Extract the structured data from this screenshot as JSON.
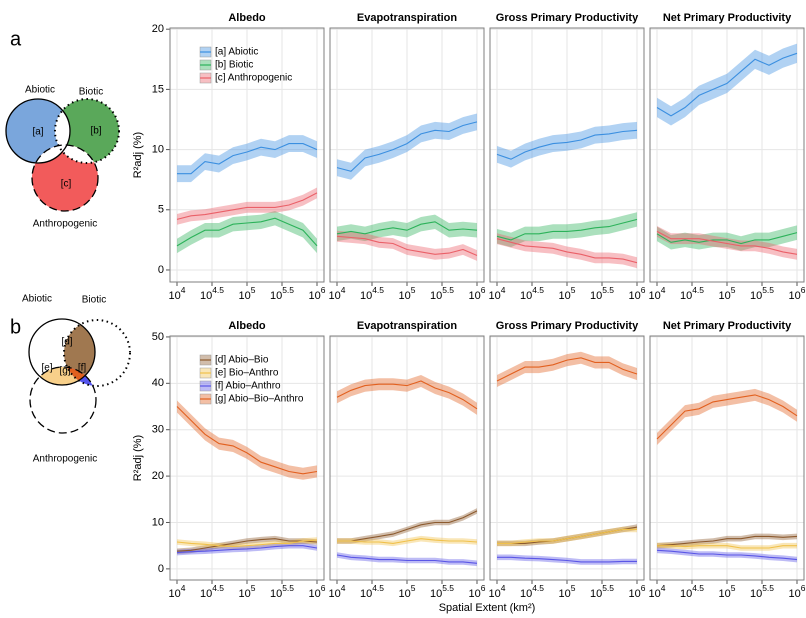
{
  "panel_labels": [
    "a",
    "b"
  ],
  "venn": [
    {
      "sets": [
        "Abiotic",
        "Biotic",
        "Anthropogenic"
      ],
      "regions": [
        "[a]",
        "[b]",
        "[c]"
      ]
    },
    {
      "sets": [
        "Abiotic",
        "Biotic",
        "Anthropogenic"
      ],
      "regions": [
        "[d]",
        "[e]",
        "[f]",
        "[g]"
      ]
    }
  ],
  "chart_data": [
    {
      "type": "line",
      "title": "Albedo",
      "xscale": "log",
      "grid": true,
      "legend": "upper left",
      "ylabel": "R²adj (%)",
      "x": [
        10000,
        15849,
        25119,
        39811,
        63096,
        100000,
        158489,
        251189,
        398107,
        630957,
        1000000
      ],
      "xlim": [
        7943,
        1258925
      ],
      "xticks": [
        {
          "value": 10000,
          "label": "10^4"
        },
        {
          "value": 31623,
          "label": "10^4.5"
        },
        {
          "value": 100000,
          "label": "10^5"
        },
        {
          "value": 316228,
          "label": "10^5.5"
        },
        {
          "value": 1000000,
          "label": "10^6"
        }
      ],
      "ylim": [
        -1,
        20.1
      ],
      "yticks": [
        0,
        5,
        10,
        15,
        20
      ],
      "series": [
        {
          "name": "[a] Abiotic",
          "color": "#3b8fe0",
          "error": 0.7,
          "values": [
            8,
            8,
            9,
            8.8,
            9.5,
            9.8,
            10.2,
            10,
            10.5,
            10.5,
            10
          ]
        },
        {
          "name": "[b] Biotic",
          "color": "#2cb25a",
          "error": 0.6,
          "values": [
            2,
            2.7,
            3.3,
            3.3,
            3.8,
            3.9,
            4,
            4.3,
            3.8,
            3.3,
            2
          ]
        },
        {
          "name": "[c] Anthropogenic",
          "color": "#ea6068",
          "error": 0.45,
          "values": [
            4.2,
            4.5,
            4.6,
            4.8,
            5,
            5.2,
            5.2,
            5.2,
            5.4,
            5.8,
            6.4
          ]
        }
      ]
    },
    {
      "type": "line",
      "title": "Evapotranspiration",
      "xscale": "log",
      "grid": true,
      "x": [
        10000,
        15849,
        25119,
        39811,
        63096,
        100000,
        158489,
        251189,
        398107,
        630957,
        1000000
      ],
      "xlim": [
        7943,
        1258925
      ],
      "xticks": [
        {
          "value": 10000,
          "label": "10^4"
        },
        {
          "value": 31623,
          "label": "10^4.5"
        },
        {
          "value": 100000,
          "label": "10^5"
        },
        {
          "value": 316228,
          "label": "10^5.5"
        },
        {
          "value": 1000000,
          "label": "10^6"
        }
      ],
      "ylim": [
        -1,
        20.1
      ],
      "yticks": [
        0,
        5,
        10,
        15,
        20
      ],
      "series": [
        {
          "color": "#3b8fe0",
          "error": 0.7,
          "values": [
            8.5,
            8.2,
            9.3,
            9.6,
            10,
            10.5,
            11.3,
            11.6,
            11.5,
            12,
            12.3
          ]
        },
        {
          "color": "#2cb25a",
          "error": 0.6,
          "values": [
            3,
            3.2,
            3,
            3.3,
            3.5,
            3.3,
            3.8,
            4,
            3.3,
            3.4,
            3.3
          ]
        },
        {
          "color": "#ea6068",
          "error": 0.45,
          "values": [
            2.8,
            2.7,
            2.6,
            2.3,
            2.2,
            1.7,
            1.5,
            1.3,
            1.4,
            1.7,
            1.2
          ]
        }
      ]
    },
    {
      "type": "line",
      "title": "Gross Primary Productivity",
      "xscale": "log",
      "grid": true,
      "x": [
        10000,
        15849,
        25119,
        39811,
        63096,
        100000,
        158489,
        251189,
        398107,
        630957,
        1000000
      ],
      "xlim": [
        7943,
        1258925
      ],
      "xticks": [
        {
          "value": 10000,
          "label": "10^4"
        },
        {
          "value": 31623,
          "label": "10^4.5"
        },
        {
          "value": 100000,
          "label": "10^5"
        },
        {
          "value": 316228,
          "label": "10^5.5"
        },
        {
          "value": 1000000,
          "label": "10^6"
        }
      ],
      "ylim": [
        -1,
        20.1
      ],
      "yticks": [
        0,
        5,
        10,
        15,
        20
      ],
      "series": [
        {
          "color": "#3b8fe0",
          "error": 0.7,
          "values": [
            9.6,
            9.2,
            9.8,
            10.2,
            10.5,
            10.6,
            10.8,
            11.2,
            11.3,
            11.5,
            11.6
          ]
        },
        {
          "color": "#2cb25a",
          "error": 0.6,
          "values": [
            2.8,
            2.5,
            3,
            3,
            3.2,
            3.2,
            3.3,
            3.5,
            3.6,
            3.9,
            4.2
          ]
        },
        {
          "color": "#ea6068",
          "error": 0.45,
          "values": [
            2.6,
            2.3,
            2,
            1.9,
            1.8,
            1.5,
            1.3,
            1,
            1,
            0.9,
            0.6
          ]
        }
      ]
    },
    {
      "type": "line",
      "title": "Net Primary Productivity",
      "xscale": "log",
      "grid": true,
      "x": [
        10000,
        15849,
        25119,
        39811,
        63096,
        100000,
        158489,
        251189,
        398107,
        630957,
        1000000
      ],
      "xlim": [
        7943,
        1258925
      ],
      "xticks": [
        {
          "value": 10000,
          "label": "10^4"
        },
        {
          "value": 31623,
          "label": "10^4.5"
        },
        {
          "value": 100000,
          "label": "10^5"
        },
        {
          "value": 316228,
          "label": "10^5.5"
        },
        {
          "value": 1000000,
          "label": "10^6"
        }
      ],
      "ylim": [
        -1,
        20.1
      ],
      "yticks": [
        0,
        5,
        10,
        15,
        20
      ],
      "series": [
        {
          "color": "#3b8fe0",
          "error": 0.8,
          "values": [
            13.5,
            12.8,
            13.5,
            14.5,
            15,
            15.5,
            16.5,
            17.5,
            17,
            17.6,
            18
          ]
        },
        {
          "color": "#2cb25a",
          "error": 0.6,
          "values": [
            3,
            2.3,
            2.5,
            2.3,
            2.5,
            2.5,
            2.2,
            2.5,
            2.5,
            2.8,
            3.1
          ]
        },
        {
          "color": "#ea6068",
          "error": 0.45,
          "values": [
            3.2,
            2.6,
            2.6,
            2.6,
            2.4,
            2.2,
            2,
            2,
            1.8,
            1.5,
            1.3
          ]
        }
      ]
    },
    {
      "type": "line",
      "title": "Albedo",
      "xscale": "log",
      "grid": true,
      "legend": "upper left",
      "ylabel": "R²adj (%)",
      "xlabel": "Spatial Extent (km²)",
      "x": [
        10000,
        15849,
        25119,
        39811,
        63096,
        100000,
        158489,
        251189,
        398107,
        630957,
        1000000
      ],
      "xlim": [
        7943,
        1258925
      ],
      "xticks": [
        {
          "value": 10000,
          "label": "10^4"
        },
        {
          "value": 31623,
          "label": "10^4.5"
        },
        {
          "value": 100000,
          "label": "10^5"
        },
        {
          "value": 316228,
          "label": "10^5.5"
        },
        {
          "value": 1000000,
          "label": "10^6"
        }
      ],
      "ylim": [
        -2.4,
        50.2
      ],
      "yticks": [
        0,
        10,
        20,
        30,
        40,
        50
      ],
      "series": [
        {
          "name": "[d] Abio–Bio",
          "color": "#8c5a2e",
          "error": 0.6,
          "values": [
            3.8,
            4,
            4.5,
            5,
            5.5,
            6,
            6.3,
            6.5,
            6,
            6,
            5.8
          ]
        },
        {
          "name": "[e] Bio–Anthro",
          "color": "#f0c14b",
          "error": 0.6,
          "values": [
            5.8,
            5.5,
            5.3,
            5,
            4.8,
            5,
            5.2,
            5.5,
            5.5,
            6,
            6.2
          ]
        },
        {
          "name": "[f]  Abio–Anthro",
          "color": "#5a56e6",
          "error": 0.6,
          "values": [
            3.5,
            3.7,
            3.8,
            4,
            4.2,
            4.3,
            4.5,
            4.8,
            5,
            5,
            4.5
          ]
        },
        {
          "name": "[g] Abio–Bio–Anthro",
          "color": "#e2601f",
          "error": 1.3,
          "values": [
            35,
            32,
            29,
            27,
            26.5,
            25,
            23,
            22,
            21,
            20.5,
            21
          ]
        }
      ]
    },
    {
      "type": "line",
      "title": "Evapotranspiration",
      "xscale": "log",
      "grid": true,
      "x": [
        10000,
        15849,
        25119,
        39811,
        63096,
        100000,
        158489,
        251189,
        398107,
        630957,
        1000000
      ],
      "xlim": [
        7943,
        1258925
      ],
      "xticks": [
        {
          "value": 10000,
          "label": "10^4"
        },
        {
          "value": 31623,
          "label": "10^4.5"
        },
        {
          "value": 100000,
          "label": "10^5"
        },
        {
          "value": 316228,
          "label": "10^5.5"
        },
        {
          "value": 1000000,
          "label": "10^6"
        }
      ],
      "ylim": [
        -2.4,
        50.2
      ],
      "yticks": [
        0,
        10,
        20,
        30,
        40,
        50
      ],
      "series": [
        {
          "color": "#8c5a2e",
          "error": 0.6,
          "values": [
            6,
            6,
            6.5,
            7,
            7.5,
            8.5,
            9.5,
            10,
            10,
            11,
            12.5
          ]
        },
        {
          "color": "#f0c14b",
          "error": 0.6,
          "values": [
            6,
            6,
            5.8,
            5.8,
            5.5,
            6,
            6.5,
            6.2,
            6,
            6,
            5.8
          ]
        },
        {
          "color": "#5a56e6",
          "error": 0.6,
          "values": [
            3,
            2.5,
            2.3,
            2,
            2,
            1.8,
            1.8,
            1.8,
            1.5,
            1.5,
            1.2
          ]
        },
        {
          "color": "#e2601f",
          "error": 1.3,
          "values": [
            37,
            38.5,
            39.5,
            39.8,
            39.8,
            39.5,
            40.5,
            39,
            38,
            36.5,
            34.5
          ]
        }
      ]
    },
    {
      "type": "line",
      "title": "Gross Primary Productivity",
      "xscale": "log",
      "grid": true,
      "x": [
        10000,
        15849,
        25119,
        39811,
        63096,
        100000,
        158489,
        251189,
        398107,
        630957,
        1000000
      ],
      "xlim": [
        7943,
        1258925
      ],
      "xticks": [
        {
          "value": 10000,
          "label": "10^4"
        },
        {
          "value": 31623,
          "label": "10^4.5"
        },
        {
          "value": 100000,
          "label": "10^5"
        },
        {
          "value": 316228,
          "label": "10^5.5"
        },
        {
          "value": 1000000,
          "label": "10^6"
        }
      ],
      "ylim": [
        -2.4,
        50.2
      ],
      "yticks": [
        0,
        10,
        20,
        30,
        40,
        50
      ],
      "series": [
        {
          "color": "#8c5a2e",
          "error": 0.6,
          "values": [
            5.5,
            5.5,
            5.5,
            5.8,
            6,
            6.5,
            7,
            7.5,
            8,
            8.5,
            9
          ]
        },
        {
          "color": "#f0c14b",
          "error": 0.6,
          "values": [
            5.5,
            5.5,
            5.8,
            6,
            6,
            6.5,
            7,
            7.5,
            8,
            8.5,
            8.5
          ]
        },
        {
          "color": "#5a56e6",
          "error": 0.6,
          "values": [
            2.5,
            2.5,
            2.3,
            2.2,
            2,
            1.8,
            1.5,
            1.5,
            1.5,
            1.6,
            1.6
          ]
        },
        {
          "color": "#e2601f",
          "error": 1.3,
          "values": [
            40.5,
            42,
            43.5,
            43.5,
            44,
            45,
            45.5,
            44.5,
            44.5,
            43,
            42
          ]
        }
      ]
    },
    {
      "type": "line",
      "title": "Net Primary Productivity",
      "xscale": "log",
      "grid": true,
      "x": [
        10000,
        15849,
        25119,
        39811,
        63096,
        100000,
        158489,
        251189,
        398107,
        630957,
        1000000
      ],
      "xlim": [
        7943,
        1258925
      ],
      "xticks": [
        {
          "value": 10000,
          "label": "10^4"
        },
        {
          "value": 31623,
          "label": "10^4.5"
        },
        {
          "value": 100000,
          "label": "10^5"
        },
        {
          "value": 316228,
          "label": "10^5.5"
        },
        {
          "value": 1000000,
          "label": "10^6"
        }
      ],
      "ylim": [
        -2.4,
        50.2
      ],
      "yticks": [
        0,
        10,
        20,
        30,
        40,
        50
      ],
      "series": [
        {
          "color": "#8c5a2e",
          "error": 0.6,
          "values": [
            5,
            5.2,
            5.5,
            5.8,
            6,
            6.5,
            6.5,
            7,
            7,
            6.8,
            7
          ]
        },
        {
          "color": "#f0c14b",
          "error": 0.6,
          "values": [
            5,
            5,
            4.8,
            5,
            5,
            5,
            4.5,
            4.5,
            4.5,
            5,
            5
          ]
        },
        {
          "color": "#5a56e6",
          "error": 0.6,
          "values": [
            4,
            3.8,
            3.5,
            3.2,
            3.2,
            3,
            3,
            2.8,
            2.5,
            2.3,
            2
          ]
        },
        {
          "color": "#e2601f",
          "error": 1.3,
          "values": [
            28,
            31,
            34,
            34.5,
            36,
            36.5,
            37,
            37.5,
            36.5,
            35,
            33
          ]
        }
      ]
    }
  ]
}
